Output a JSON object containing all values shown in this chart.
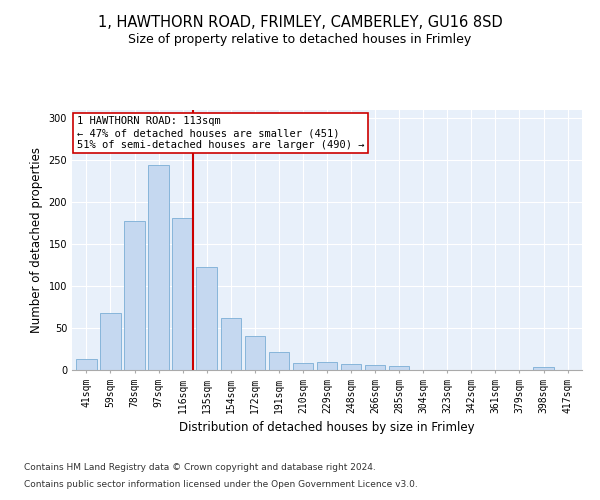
{
  "title1": "1, HAWTHORN ROAD, FRIMLEY, CAMBERLEY, GU16 8SD",
  "title2": "Size of property relative to detached houses in Frimley",
  "xlabel": "Distribution of detached houses by size in Frimley",
  "ylabel": "Number of detached properties",
  "categories": [
    "41sqm",
    "59sqm",
    "78sqm",
    "97sqm",
    "116sqm",
    "135sqm",
    "154sqm",
    "172sqm",
    "191sqm",
    "210sqm",
    "229sqm",
    "248sqm",
    "266sqm",
    "285sqm",
    "304sqm",
    "323sqm",
    "342sqm",
    "361sqm",
    "379sqm",
    "398sqm",
    "417sqm"
  ],
  "values": [
    13,
    68,
    178,
    245,
    181,
    123,
    62,
    40,
    21,
    8,
    10,
    7,
    6,
    5,
    0,
    0,
    0,
    0,
    0,
    3,
    0
  ],
  "bar_color": "#c5d8f0",
  "bar_edge_color": "#7aaed6",
  "red_line_index": 4,
  "red_line_color": "#cc0000",
  "annotation_line1": "1 HAWTHORN ROAD: 113sqm",
  "annotation_line2": "← 47% of detached houses are smaller (451)",
  "annotation_line3": "51% of semi-detached houses are larger (490) →",
  "annotation_box_color": "#ffffff",
  "annotation_box_edge": "#cc0000",
  "ylim": [
    0,
    310
  ],
  "yticks": [
    0,
    50,
    100,
    150,
    200,
    250,
    300
  ],
  "footer1": "Contains HM Land Registry data © Crown copyright and database right 2024.",
  "footer2": "Contains public sector information licensed under the Open Government Licence v3.0.",
  "background_color": "#ffffff",
  "plot_bg_color": "#e8f0fa",
  "title_fontsize": 10.5,
  "title2_fontsize": 9,
  "axis_label_fontsize": 8.5,
  "tick_fontsize": 7,
  "footer_fontsize": 6.5,
  "annotation_fontsize": 7.5
}
